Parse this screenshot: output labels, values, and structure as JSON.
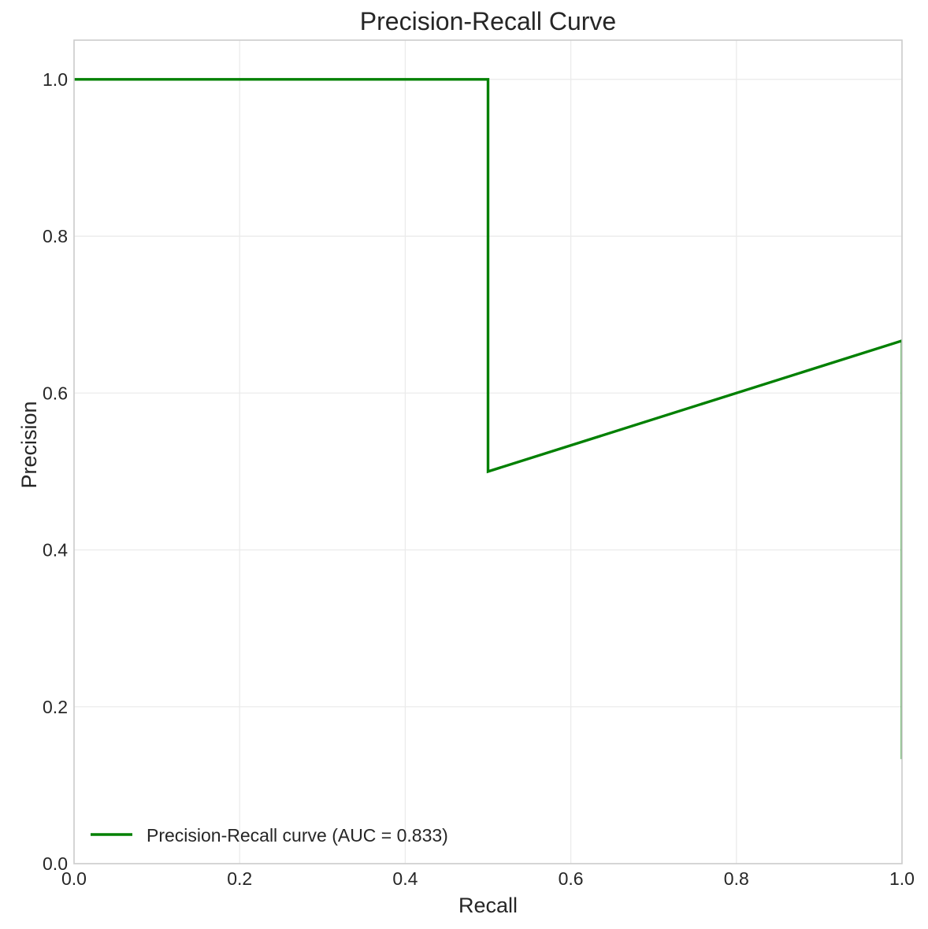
{
  "chart_data": {
    "type": "line",
    "title": "Precision-Recall Curve",
    "xlabel": "Recall",
    "ylabel": "Precision",
    "xlim": [
      0.0,
      1.0
    ],
    "ylim": [
      0.0,
      1.05
    ],
    "xticks": [
      "0.0",
      "0.2",
      "0.4",
      "0.6",
      "0.8",
      "1.0"
    ],
    "yticks": [
      "0.0",
      "0.2",
      "0.4",
      "0.6",
      "0.8",
      "1.0"
    ],
    "grid": true,
    "legend_position": "lower-left",
    "series": [
      {
        "name": "Precision-Recall curve (AUC = 0.833)",
        "color": "#008000",
        "x": [
          0.0,
          0.5,
          0.5,
          1.0,
          1.0
        ],
        "y": [
          1.0,
          1.0,
          0.5,
          0.6667,
          0.1333
        ]
      }
    ]
  }
}
